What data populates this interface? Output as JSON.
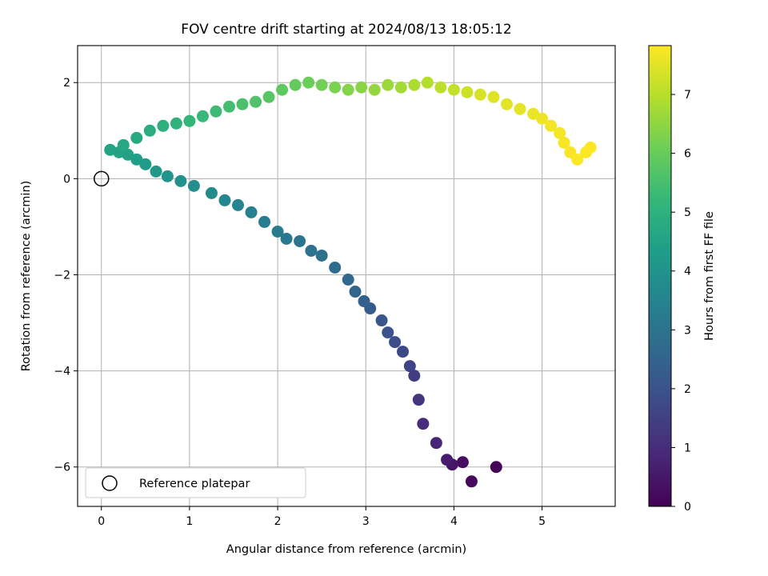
{
  "chart_data": {
    "type": "scatter",
    "title": "FOV centre drift starting at 2024/08/13 18:05:12",
    "xlabel": "Angular distance from reference (arcmin)",
    "ylabel": "Rotation from reference (arcmin)",
    "xlim": [
      -0.27,
      5.83
    ],
    "ylim": [
      -6.82,
      2.77
    ],
    "xticks": [
      0,
      1,
      2,
      3,
      4,
      5
    ],
    "yticks": [
      -6,
      -4,
      -2,
      0,
      2
    ],
    "xtick_labels": [
      "0",
      "1",
      "2",
      "3",
      "4",
      "5"
    ],
    "ytick_labels": [
      "−6",
      "−4",
      "−2",
      "0",
      "2"
    ],
    "grid": true,
    "colormap": "viridis",
    "colorbar": {
      "label": "Hours from first FF file",
      "range": [
        0,
        7.83
      ],
      "ticks": [
        0,
        1,
        2,
        3,
        4,
        5,
        6,
        7
      ],
      "tick_labels": [
        "0",
        "1",
        "2",
        "3",
        "4",
        "5",
        "6",
        "7"
      ]
    },
    "legend": {
      "position": "lower-left",
      "entries": [
        "Reference platepar"
      ]
    },
    "reference_marker": {
      "x": 0,
      "y": 0,
      "label": "Reference platepar"
    },
    "series": [
      {
        "color_by": "hours",
        "x": [
          4.48,
          4.2,
          4.1,
          3.98,
          3.92,
          3.8,
          3.65,
          3.6,
          3.55,
          3.5,
          3.42,
          3.33,
          3.25,
          3.18,
          3.05,
          2.98,
          2.88,
          2.8,
          2.65,
          2.5,
          2.38,
          2.25,
          2.1,
          2.0,
          1.85,
          1.7,
          1.55,
          1.4,
          1.25,
          1.05,
          0.9,
          0.75,
          0.62,
          0.5,
          0.4,
          0.3,
          0.2,
          0.1,
          0.25,
          0.4,
          0.55,
          0.7,
          0.85,
          1.0,
          1.15,
          1.3,
          1.45,
          1.6,
          1.75,
          1.9,
          2.05,
          2.2,
          2.35,
          2.5,
          2.65,
          2.8,
          2.95,
          3.1,
          3.25,
          3.4,
          3.55,
          3.7,
          3.85,
          4.0,
          4.15,
          4.3,
          4.45,
          4.6,
          4.75,
          4.9,
          5.0,
          5.1,
          5.2,
          5.25,
          5.32,
          5.4,
          5.5,
          5.55
        ],
        "y": [
          -6.0,
          -6.3,
          -5.9,
          -5.95,
          -5.85,
          -5.5,
          -5.1,
          -4.6,
          -4.1,
          -3.9,
          -3.6,
          -3.4,
          -3.2,
          -2.95,
          -2.7,
          -2.55,
          -2.35,
          -2.1,
          -1.85,
          -1.6,
          -1.5,
          -1.3,
          -1.25,
          -1.1,
          -0.9,
          -0.7,
          -0.55,
          -0.45,
          -0.3,
          -0.15,
          -0.05,
          0.05,
          0.15,
          0.3,
          0.4,
          0.5,
          0.55,
          0.6,
          0.7,
          0.85,
          1.0,
          1.1,
          1.15,
          1.2,
          1.3,
          1.4,
          1.5,
          1.55,
          1.6,
          1.7,
          1.85,
          1.95,
          2.0,
          1.95,
          1.9,
          1.85,
          1.9,
          1.85,
          1.95,
          1.9,
          1.95,
          2.0,
          1.9,
          1.85,
          1.8,
          1.75,
          1.7,
          1.55,
          1.45,
          1.35,
          1.25,
          1.1,
          0.95,
          0.75,
          0.55,
          0.4,
          0.55,
          0.65
        ],
        "hours": [
          0.1,
          0.2,
          0.3,
          0.45,
          0.6,
          0.8,
          1.0,
          1.2,
          1.4,
          1.55,
          1.7,
          1.85,
          2.0,
          2.1,
          2.25,
          2.35,
          2.5,
          2.6,
          2.75,
          2.85,
          2.95,
          3.05,
          3.15,
          3.25,
          3.35,
          3.45,
          3.55,
          3.65,
          3.75,
          3.85,
          3.95,
          4.05,
          4.15,
          4.25,
          4.35,
          4.45,
          4.5,
          4.55,
          4.65,
          4.75,
          4.85,
          4.95,
          5.05,
          5.15,
          5.25,
          5.35,
          5.45,
          5.55,
          5.65,
          5.75,
          5.85,
          5.95,
          6.05,
          6.15,
          6.25,
          6.35,
          6.45,
          6.55,
          6.65,
          6.75,
          6.85,
          6.95,
          7.05,
          7.15,
          7.25,
          7.35,
          7.45,
          7.5,
          7.55,
          7.6,
          7.65,
          7.7,
          7.72,
          7.75,
          7.77,
          7.79,
          7.81,
          7.83
        ]
      }
    ]
  }
}
